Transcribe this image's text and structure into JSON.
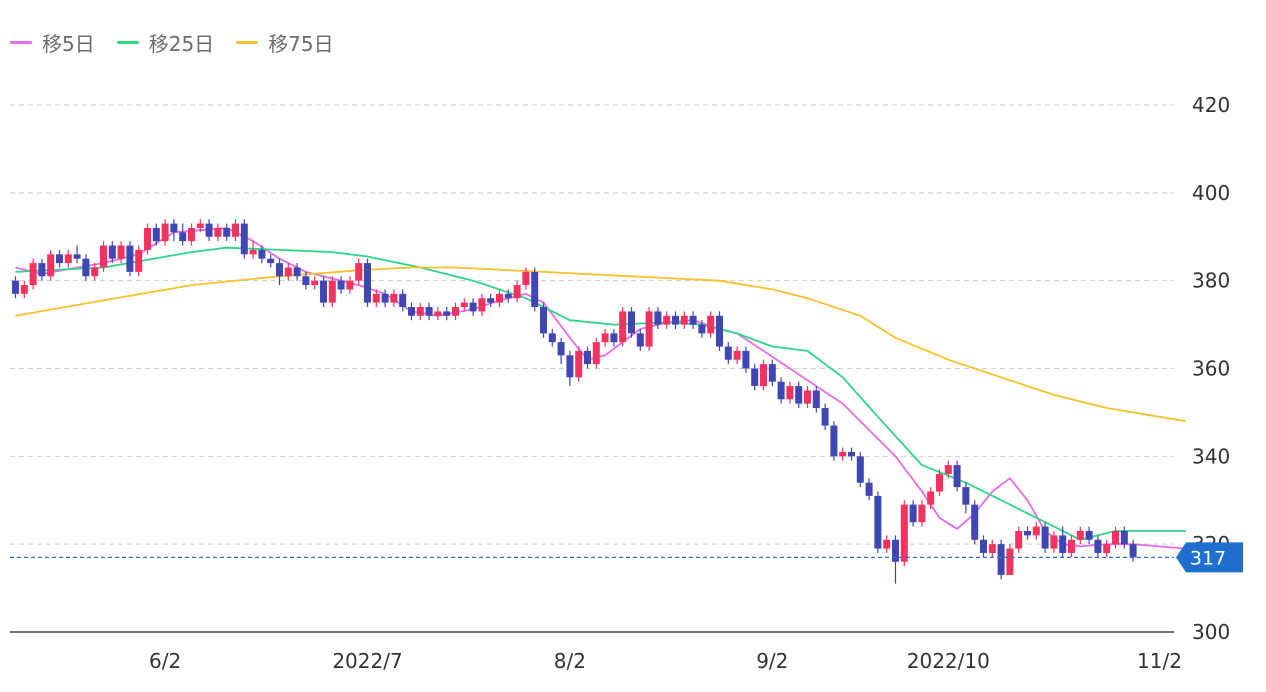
{
  "legend": [
    {
      "label": "移5日",
      "color": "#e56ce8"
    },
    {
      "label": "移25日",
      "color": "#2fd586"
    },
    {
      "label": "移75日",
      "color": "#f7c12c"
    }
  ],
  "colors": {
    "up": "#f0335f",
    "down": "#4146b5",
    "grid": "#cfcfcf",
    "current": "#2f70d6"
  },
  "current_price": {
    "value": 317,
    "label": "317"
  },
  "chart_data": {
    "type": "candlestick",
    "y_ticks": [
      300,
      320,
      340,
      360,
      380,
      400,
      420
    ],
    "ylim": [
      300,
      423
    ],
    "x_ticks": [
      {
        "label": "6/2",
        "index": 17
      },
      {
        "label": "2022/7",
        "index": 40
      },
      {
        "label": "8/2",
        "index": 63
      },
      {
        "label": "9/2",
        "index": 86
      },
      {
        "label": "2022/10",
        "index": 106
      },
      {
        "label": "11/2",
        "index": 130
      }
    ],
    "candles": [
      [
        380,
        377,
        381,
        376
      ],
      [
        377,
        379,
        380,
        376
      ],
      [
        379,
        384,
        385,
        378
      ],
      [
        384,
        381,
        385,
        380
      ],
      [
        381,
        386,
        387,
        380
      ],
      [
        386,
        384,
        387,
        383
      ],
      [
        384,
        386,
        387,
        383
      ],
      [
        386,
        385,
        388,
        384
      ],
      [
        385,
        381,
        386,
        380
      ],
      [
        381,
        383,
        384,
        380
      ],
      [
        383,
        388,
        389,
        382
      ],
      [
        388,
        385,
        389,
        384
      ],
      [
        385,
        388,
        389,
        384
      ],
      [
        388,
        382,
        389,
        381
      ],
      [
        382,
        387,
        388,
        381
      ],
      [
        387,
        392,
        393,
        386
      ],
      [
        392,
        389,
        393,
        388
      ],
      [
        389,
        393,
        394,
        388
      ],
      [
        393,
        391,
        394,
        389
      ],
      [
        391,
        389,
        393,
        388
      ],
      [
        389,
        392,
        393,
        388
      ],
      [
        392,
        393,
        394,
        391
      ],
      [
        393,
        390,
        394,
        389
      ],
      [
        390,
        392,
        393,
        389
      ],
      [
        392,
        390,
        393,
        389
      ],
      [
        390,
        393,
        394,
        389
      ],
      [
        393,
        386,
        394,
        385
      ],
      [
        386,
        387,
        389,
        385
      ],
      [
        387,
        385,
        388,
        384
      ],
      [
        385,
        384,
        386,
        383
      ],
      [
        384,
        381,
        385,
        379
      ],
      [
        381,
        383,
        384,
        380
      ],
      [
        383,
        381,
        384,
        380
      ],
      [
        381,
        379,
        382,
        378
      ],
      [
        379,
        380,
        381,
        378
      ],
      [
        380,
        375,
        381,
        374
      ],
      [
        375,
        380,
        381,
        374
      ],
      [
        380,
        378,
        381,
        377
      ],
      [
        378,
        380,
        381,
        377
      ],
      [
        380,
        384,
        385,
        379
      ],
      [
        384,
        375,
        385,
        374
      ],
      [
        375,
        377,
        378,
        374
      ],
      [
        377,
        375,
        378,
        374
      ],
      [
        375,
        377,
        378,
        374
      ],
      [
        377,
        374,
        378,
        373
      ],
      [
        374,
        372,
        375,
        371
      ],
      [
        372,
        374,
        375,
        371
      ],
      [
        374,
        372,
        375,
        371
      ],
      [
        372,
        373,
        374,
        371
      ],
      [
        373,
        372,
        374,
        371
      ],
      [
        372,
        374,
        375,
        371
      ],
      [
        374,
        375,
        376,
        373
      ],
      [
        375,
        373,
        376,
        372
      ],
      [
        373,
        376,
        377,
        372
      ],
      [
        376,
        375,
        377,
        374
      ],
      [
        375,
        377,
        378,
        374
      ],
      [
        377,
        376,
        378,
        375
      ],
      [
        376,
        379,
        380,
        375
      ],
      [
        379,
        382,
        383,
        378
      ],
      [
        382,
        374,
        383,
        373
      ],
      [
        374,
        368,
        375,
        367
      ],
      [
        368,
        366,
        369,
        365
      ],
      [
        366,
        363,
        367,
        361
      ],
      [
        363,
        358,
        364,
        356
      ],
      [
        358,
        364,
        365,
        357
      ],
      [
        364,
        361,
        365,
        360
      ],
      [
        361,
        366,
        367,
        360
      ],
      [
        366,
        368,
        369,
        365
      ],
      [
        368,
        366,
        369,
        365
      ],
      [
        366,
        373,
        374,
        365
      ],
      [
        373,
        368,
        374,
        367
      ],
      [
        368,
        365,
        369,
        364
      ],
      [
        365,
        373,
        374,
        364
      ],
      [
        373,
        370,
        374,
        369
      ],
      [
        370,
        372,
        373,
        369
      ],
      [
        372,
        370,
        373,
        369
      ],
      [
        370,
        372,
        373,
        369
      ],
      [
        372,
        370,
        373,
        369
      ],
      [
        370,
        368,
        371,
        367
      ],
      [
        368,
        372,
        373,
        367
      ],
      [
        372,
        365,
        373,
        364
      ],
      [
        365,
        362,
        366,
        361
      ],
      [
        362,
        364,
        365,
        361
      ],
      [
        364,
        360,
        365,
        359
      ],
      [
        360,
        356,
        361,
        355
      ],
      [
        356,
        361,
        362,
        355
      ],
      [
        361,
        357,
        362,
        356
      ],
      [
        357,
        353,
        358,
        352
      ],
      [
        353,
        356,
        357,
        352
      ],
      [
        356,
        352,
        357,
        351
      ],
      [
        352,
        355,
        356,
        351
      ],
      [
        355,
        351,
        356,
        350
      ],
      [
        351,
        347,
        352,
        346
      ],
      [
        347,
        340,
        348,
        339
      ],
      [
        340,
        341,
        342,
        339
      ],
      [
        341,
        340,
        342,
        339
      ],
      [
        340,
        334,
        341,
        333
      ],
      [
        334,
        331,
        335,
        330
      ],
      [
        331,
        319,
        332,
        318
      ],
      [
        319,
        321,
        322,
        318
      ],
      [
        321,
        316,
        322,
        311
      ],
      [
        316,
        329,
        330,
        315
      ],
      [
        329,
        325,
        330,
        324
      ],
      [
        325,
        329,
        330,
        324
      ],
      [
        329,
        332,
        333,
        328
      ],
      [
        332,
        336,
        337,
        331
      ],
      [
        336,
        338,
        339,
        335
      ],
      [
        338,
        333,
        339,
        332
      ],
      [
        333,
        329,
        334,
        327
      ],
      [
        329,
        321,
        330,
        320
      ],
      [
        321,
        318,
        322,
        317
      ],
      [
        318,
        320,
        321,
        317
      ],
      [
        320,
        313,
        321,
        312
      ],
      [
        313,
        319,
        320,
        316
      ],
      [
        319,
        323,
        324,
        318
      ],
      [
        323,
        322,
        324,
        321
      ],
      [
        322,
        324,
        325,
        321
      ],
      [
        324,
        319,
        325,
        318
      ],
      [
        319,
        322,
        323,
        318
      ],
      [
        322,
        318,
        324,
        317
      ],
      [
        318,
        321,
        322,
        317
      ],
      [
        321,
        323,
        324,
        320
      ],
      [
        323,
        321,
        324,
        320
      ],
      [
        321,
        318,
        322,
        317
      ],
      [
        318,
        320,
        321,
        317
      ],
      [
        320,
        323,
        324,
        319
      ],
      [
        323,
        320,
        324,
        319
      ],
      [
        320,
        317,
        321,
        316
      ]
    ],
    "series": [
      {
        "name": "移5日",
        "color": "#e56ce8",
        "values": [
          [
            0,
            383
          ],
          [
            3,
            381.5
          ],
          [
            7,
            383
          ],
          [
            10,
            384
          ],
          [
            14,
            386
          ],
          [
            18,
            391
          ],
          [
            21,
            391.5
          ],
          [
            24,
            392
          ],
          [
            27,
            389
          ],
          [
            30,
            385
          ],
          [
            33,
            382
          ],
          [
            36,
            380.5
          ],
          [
            39,
            379
          ],
          [
            42,
            377
          ],
          [
            45,
            373
          ],
          [
            48,
            372
          ],
          [
            52,
            373.5
          ],
          [
            55,
            375.5
          ],
          [
            58,
            377
          ],
          [
            60,
            375
          ],
          [
            63,
            367
          ],
          [
            65,
            362
          ],
          [
            67,
            363
          ],
          [
            69,
            366
          ],
          [
            71,
            369
          ],
          [
            74,
            370.5
          ],
          [
            77,
            371
          ],
          [
            80,
            369
          ],
          [
            82,
            368
          ],
          [
            85,
            364
          ],
          [
            88,
            360
          ],
          [
            91,
            356
          ],
          [
            94,
            352
          ],
          [
            97,
            346
          ],
          [
            100,
            340
          ],
          [
            103,
            332
          ],
          [
            105,
            326
          ],
          [
            107,
            323.5
          ],
          [
            109,
            327
          ],
          [
            111,
            332
          ],
          [
            113,
            335
          ],
          [
            115,
            330
          ],
          [
            117,
            323
          ],
          [
            119,
            320
          ],
          [
            121,
            319.5
          ],
          [
            124,
            320
          ],
          [
            127,
            320
          ],
          [
            130,
            319.5
          ],
          [
            133,
            319
          ]
        ]
      },
      {
        "name": "移25日",
        "color": "#2fd586",
        "values": [
          [
            0,
            382
          ],
          [
            10,
            383
          ],
          [
            20,
            386.5
          ],
          [
            24,
            387.5
          ],
          [
            30,
            387
          ],
          [
            36,
            386.5
          ],
          [
            40,
            385.5
          ],
          [
            46,
            383
          ],
          [
            52,
            380
          ],
          [
            58,
            376
          ],
          [
            63,
            371
          ],
          [
            68,
            370
          ],
          [
            74,
            370.5
          ],
          [
            78,
            370
          ],
          [
            82,
            368
          ],
          [
            86,
            365
          ],
          [
            90,
            364
          ],
          [
            94,
            358
          ],
          [
            98,
            349
          ],
          [
            103,
            338
          ],
          [
            108,
            334
          ],
          [
            113,
            329
          ],
          [
            118,
            324
          ],
          [
            121,
            321
          ],
          [
            125,
            323
          ],
          [
            128,
            323
          ],
          [
            131,
            323
          ],
          [
            133,
            323
          ]
        ]
      },
      {
        "name": "移75日",
        "color": "#f7c12c",
        "values": [
          [
            0,
            372
          ],
          [
            10,
            375.5
          ],
          [
            20,
            379
          ],
          [
            30,
            381
          ],
          [
            40,
            382.5
          ],
          [
            45,
            383
          ],
          [
            50,
            383
          ],
          [
            60,
            382
          ],
          [
            70,
            381
          ],
          [
            80,
            380
          ],
          [
            86,
            378
          ],
          [
            90,
            376
          ],
          [
            96,
            372
          ],
          [
            100,
            367
          ],
          [
            106,
            362
          ],
          [
            112,
            358
          ],
          [
            118,
            354
          ],
          [
            124,
            351
          ],
          [
            133,
            348
          ]
        ]
      }
    ]
  }
}
